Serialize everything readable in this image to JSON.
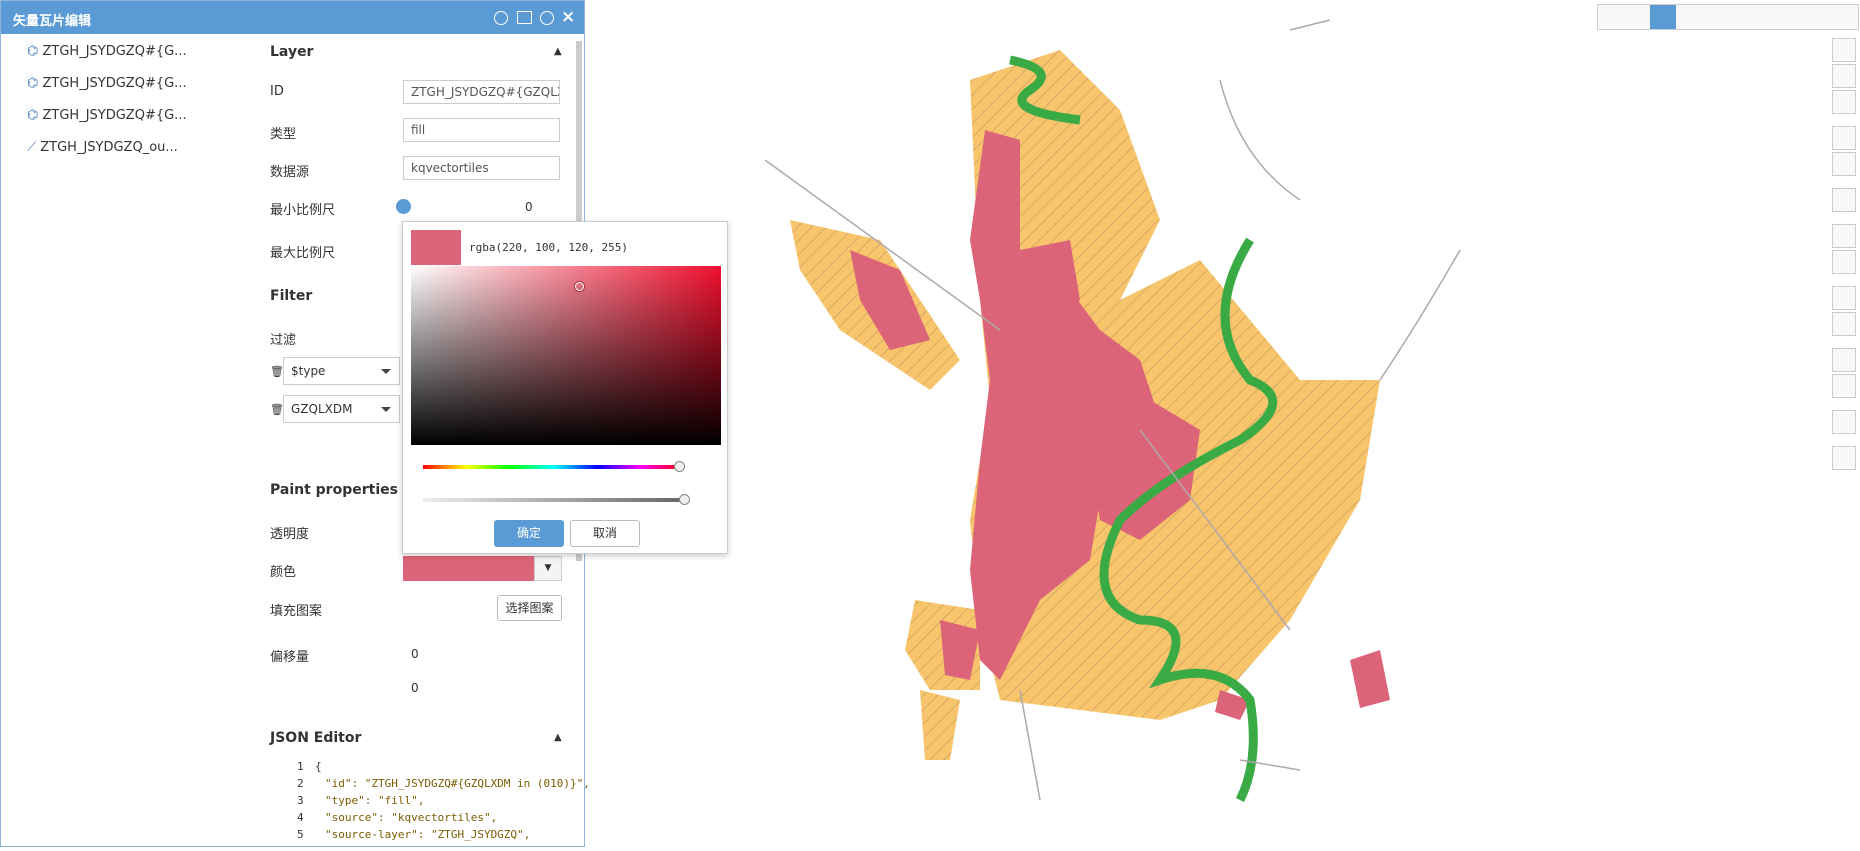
{
  "header": {
    "title": "矢量瓦片编辑"
  },
  "layers": [
    "ZTGH_JSYDGZQ#{G...",
    "ZTGH_JSYDGZQ#{G...",
    "ZTGH_JSYDGZQ#{G...",
    "ZTGH_JSYDGZQ_ou..."
  ],
  "layer_section": {
    "title": "Layer",
    "fields": [
      {
        "label": "ID",
        "value": "ZTGH_JSYDGZQ#{GZQLXD"
      },
      {
        "label": "类型",
        "value": "fill"
      },
      {
        "label": "数据源",
        "value": "kqvectortiles"
      }
    ],
    "min_zoom": {
      "label": "最小比例尺",
      "value": "0"
    },
    "max_zoom": {
      "label": "最大比例尺"
    }
  },
  "filter": {
    "title": "Filter",
    "label": "过滤",
    "conditions": [
      "$type",
      "GZQLXDM"
    ]
  },
  "paint": {
    "title": "Paint properties",
    "opacity_label": "透明度",
    "color_label": "颜色",
    "pattern_label": "填充图案",
    "pattern_button": "选择图案",
    "offset_label": "偏移量",
    "offset_values": [
      "0",
      "0"
    ]
  },
  "color_picker": {
    "value": "rgba(220, 100, 120, 255)",
    "ok": "确定",
    "cancel": "取消"
  },
  "json_editor": {
    "title": "JSON Editor",
    "lines": [
      {
        "n": "1",
        "text": "{"
      },
      {
        "n": "2",
        "text": "\"id\": \"ZTGH_JSYDGZQ#{GZQLXDM in (010)}\","
      },
      {
        "n": "3",
        "text": "\"type\": \"fill\","
      },
      {
        "n": "4",
        "text": "\"source\": \"kqvectortiles\","
      },
      {
        "n": "5",
        "text": "\"source-layer\": \"ZTGH_JSYDGZQ\","
      }
    ]
  }
}
